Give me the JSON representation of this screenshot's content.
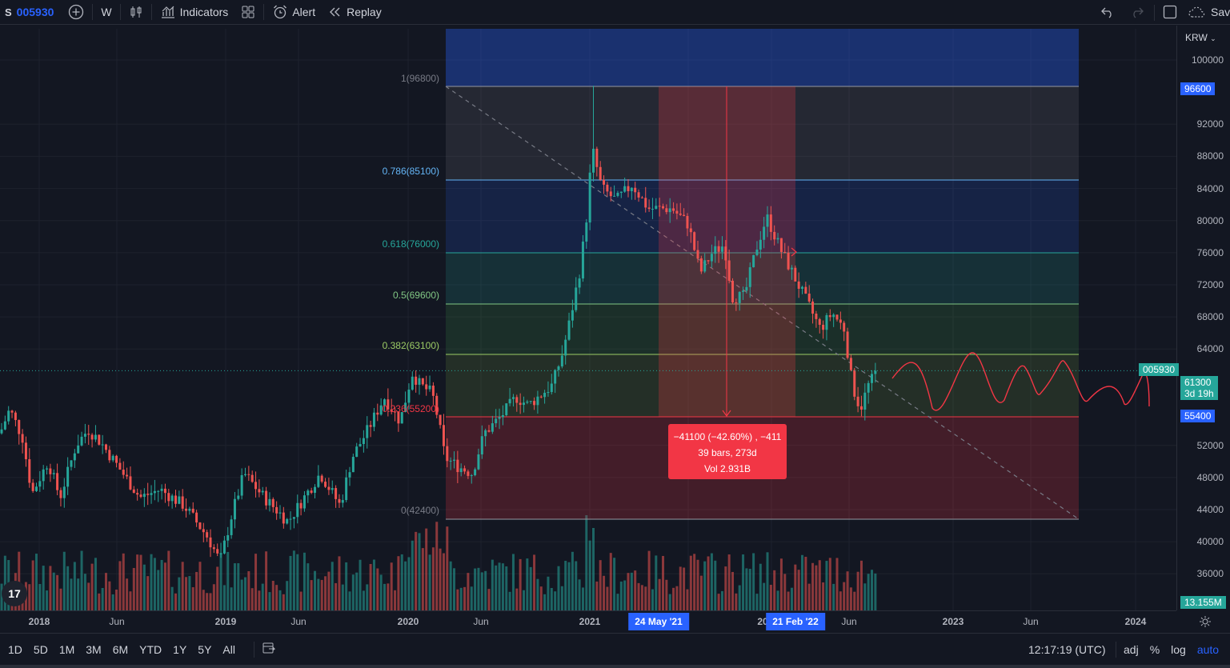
{
  "toolbar": {
    "symbol_prefix": "S",
    "symbol": "005930",
    "interval": "W",
    "indicators_label": "Indicators",
    "alert_label": "Alert",
    "replay_label": "Replay",
    "save_label": "Save"
  },
  "price_axis": {
    "currency": "KRW",
    "labels": [
      "100000",
      "92000",
      "88000",
      "84000",
      "80000",
      "76000",
      "72000",
      "68000",
      "64000",
      "52000",
      "48000",
      "44000",
      "40000",
      "36000"
    ],
    "current_price": "61300",
    "countdown": "3d 19h",
    "symbol_tag": "005930",
    "upper_badge": "96600",
    "lower_badge": "55400",
    "volume_badge": "13.155M"
  },
  "time_axis": {
    "labels": [
      "2018",
      "Jun",
      "2019",
      "Jun",
      "2020",
      "Jun",
      "2021",
      "Jun",
      "2023",
      "Jun",
      "2024"
    ],
    "range_start": "24 May '21",
    "range_end": "21 Feb '22",
    "hidden_label_fragment": "20"
  },
  "fib_levels": [
    {
      "label": "1(96800)",
      "color": "#787b86"
    },
    {
      "label": "0.786(85100)",
      "color": "#64b5f6"
    },
    {
      "label": "0.618(76000)",
      "color": "#26a69a"
    },
    {
      "label": "0.5(69600)",
      "color": "#81c784"
    },
    {
      "label": "0.382(63100)",
      "color": "#9ccc65"
    },
    {
      "label": "0.236(55200)",
      "color": "#f23645"
    },
    {
      "label": "0(42400)",
      "color": "#787b86"
    }
  ],
  "measure": {
    "line1": "−41100 (−42.60%) , −411",
    "line2": "39 bars, 273d",
    "line3": "Vol 2.931B"
  },
  "bottom_bar": {
    "ranges": [
      "1D",
      "5D",
      "1M",
      "3M",
      "6M",
      "YTD",
      "1Y",
      "5Y",
      "All"
    ],
    "clock": "12:17:19 (UTC)",
    "adj": "adj",
    "percent": "%",
    "log": "log",
    "auto": "auto"
  },
  "logo_text": "17",
  "colors": {
    "up": "#26a69a",
    "down": "#ef5350",
    "accent": "#2962ff",
    "background": "#131722"
  }
}
